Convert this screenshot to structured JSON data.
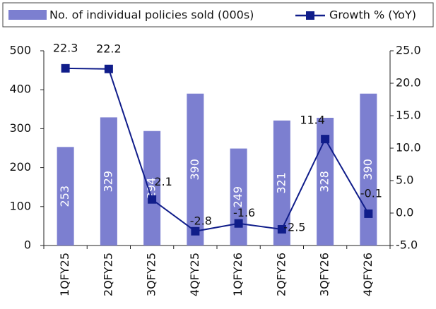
{
  "chart_data": {
    "type": "bar",
    "categories": [
      "1QFY25",
      "2QFY25",
      "3QFY25",
      "4QFY25",
      "1QFY26",
      "2QFY26",
      "3QFY26",
      "4QFY26"
    ],
    "series": [
      {
        "name": "No. of individual policies sold (000s)",
        "color": "#7c7fd0",
        "type": "bar",
        "values": [
          253,
          329,
          294,
          390,
          249,
          321,
          328,
          390
        ]
      },
      {
        "name": "Growth % (YoY)",
        "color": "#101d8a",
        "type": "line",
        "axis": "y2",
        "values": [
          22.3,
          22.2,
          2.1,
          -2.8,
          -1.6,
          -2.5,
          11.4,
          -0.1
        ]
      }
    ],
    "ylim": [
      0,
      500
    ],
    "yticks": [
      0,
      100,
      200,
      300,
      400,
      500
    ],
    "y2lim": [
      -5,
      25
    ],
    "y2ticks": [
      {
        "value": -5,
        "label": "-5.0"
      },
      {
        "value": 0,
        "label": "0.0"
      },
      {
        "value": 5,
        "label": "5.0"
      },
      {
        "value": 10,
        "label": "10.0"
      },
      {
        "value": 15,
        "label": "15.0"
      },
      {
        "value": 20,
        "label": "20.0"
      },
      {
        "value": 25,
        "label": "25.0"
      }
    ],
    "legend": "top"
  }
}
